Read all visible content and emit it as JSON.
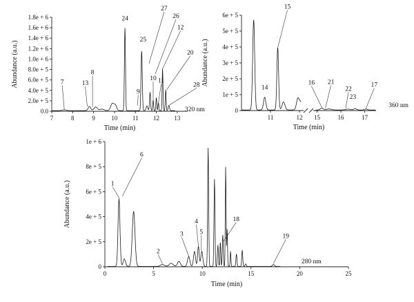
{
  "chart_data": [
    {
      "type": "line",
      "xlabel": "Time (min)",
      "ylabel": "Abundance (a.u.)",
      "xlim": [
        7,
        13.5
      ],
      "ylim": [
        0,
        1800000
      ],
      "x_ticks": [
        7,
        8,
        9,
        10,
        11,
        12,
        13
      ],
      "x_tick_labels": [
        "7",
        "8",
        "9",
        "10",
        "11",
        "12",
        "13"
      ],
      "y_ticks": [
        0,
        200000,
        400000,
        600000,
        800000,
        1000000,
        1200000,
        1400000,
        1600000,
        1800000
      ],
      "y_tick_labels": [
        "0.0",
        "2.0e + 5",
        "4.0e + 5",
        "6.0e + 5",
        "8.0e + 5",
        "1.0e + 6",
        "1.2e + 6",
        "1.4e + 6",
        "1.6e + 6",
        "1.8e + 6"
      ],
      "wavelength": "320 nm",
      "peaks": [
        {
          "label": "7",
          "x": 7.6,
          "y": 20000
        },
        {
          "label": "13",
          "x": 8.7,
          "y": 80000
        },
        {
          "label": "8",
          "x": 8.95,
          "y": 70000
        },
        {
          "label": "24",
          "x": 10.5,
          "y": 1580000
        },
        {
          "label": "9",
          "x": 11.1,
          "y": 100000
        },
        {
          "label": "25",
          "x": 11.3,
          "y": 1140000
        },
        {
          "label": "27",
          "x": 11.65,
          "y": 900000
        },
        {
          "label": "10",
          "x": 11.85,
          "y": 200000
        },
        {
          "label": "26",
          "x": 11.95,
          "y": 700000
        },
        {
          "label": "11",
          "x": 12.1,
          "y": 150000
        },
        {
          "label": "12",
          "x": 12.3,
          "y": 800000
        },
        {
          "label": "20",
          "x": 12.5,
          "y": 400000
        },
        {
          "label": "28",
          "x": 12.6,
          "y": 100000
        }
      ]
    },
    {
      "type": "line",
      "xlabel": "Time (min)",
      "ylabel": "Abundance (a.u.)",
      "xlim": [
        10,
        17.5
      ],
      "ylim": [
        0,
        600000
      ],
      "axis_break": [
        12.1,
        14.9
      ],
      "x_ticks": [
        11,
        12,
        15,
        16,
        17
      ],
      "x_tick_labels": [
        "11",
        "12",
        "15",
        "16",
        "17"
      ],
      "y_ticks": [
        0,
        100000,
        200000,
        300000,
        400000,
        500000,
        600000
      ],
      "y_tick_labels": [
        "0",
        "1e + 5",
        "2e + 5",
        "3e + 5",
        "4e + 5",
        "5e + 5",
        "6e + 5"
      ],
      "wavelength": "360 nm",
      "peaks": [
        {
          "label": "14",
          "x": 10.8,
          "y": 80000
        },
        {
          "label": "15",
          "x": 11.25,
          "y": 390000
        },
        {
          "label": "16",
          "x": 15.2,
          "y": 15000
        },
        {
          "label": "21",
          "x": 15.35,
          "y": 10000
        },
        {
          "label": "22",
          "x": 16.2,
          "y": 10000
        },
        {
          "label": "23",
          "x": 16.5,
          "y": 8000
        },
        {
          "label": "17",
          "x": 17.05,
          "y": 10000
        }
      ]
    },
    {
      "type": "line",
      "xlabel": "Time (min)",
      "ylabel": "Abundance (a.u.)",
      "xlim": [
        0,
        25
      ],
      "ylim": [
        0,
        1000000
      ],
      "x_ticks": [
        0,
        5,
        10,
        15,
        20,
        25
      ],
      "x_tick_labels": [
        "0",
        "5",
        "10",
        "15",
        "20",
        "25"
      ],
      "y_ticks": [
        0,
        200000,
        400000,
        600000,
        800000,
        1000000
      ],
      "y_tick_labels": [
        "0",
        "2e + 5",
        "4e + 5",
        "6e + 5",
        "8e + 5",
        "1e + 6"
      ],
      "wavelength": "280 nm",
      "peaks": [
        {
          "label": "1",
          "x": 1.5,
          "y": 540000
        },
        {
          "label": "6",
          "x": 1.8,
          "y": 560000
        },
        {
          "label": "2",
          "x": 5.9,
          "y": 20000
        },
        {
          "label": "3",
          "x": 8.6,
          "y": 80000
        },
        {
          "label": "4",
          "x": 9.6,
          "y": 160000
        },
        {
          "label": "5",
          "x": 9.9,
          "y": 120000
        },
        {
          "label": "18",
          "x": 12.2,
          "y": 200000
        },
        {
          "label": "19",
          "x": 17.3,
          "y": 20000
        }
      ]
    }
  ]
}
